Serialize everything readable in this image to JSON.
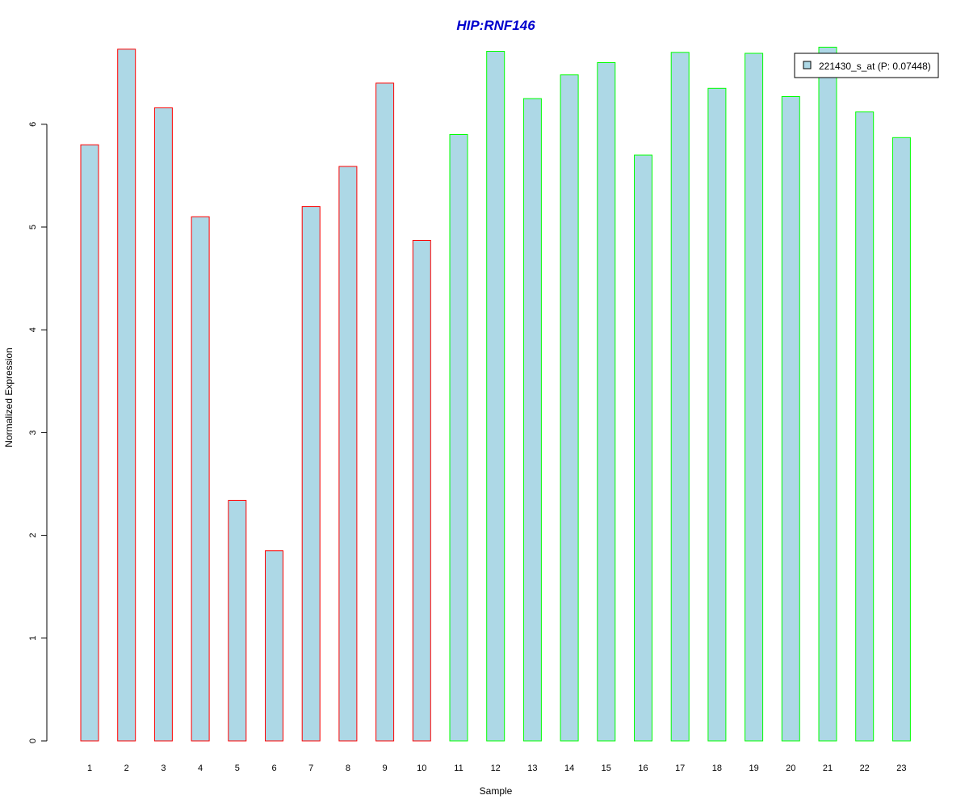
{
  "chart_data": {
    "type": "bar",
    "title": "HIP:RNF146",
    "xlabel": "Sample",
    "ylabel": "Normalized Expression",
    "categories": [
      "1",
      "2",
      "3",
      "4",
      "5",
      "6",
      "7",
      "8",
      "9",
      "10",
      "11",
      "12",
      "13",
      "14",
      "15",
      "16",
      "17",
      "18",
      "19",
      "20",
      "21",
      "22",
      "23"
    ],
    "series": [
      {
        "name": "221430_s_at (P: 0.07448)",
        "values": [
          5.8,
          6.73,
          6.16,
          5.1,
          2.34,
          1.85,
          5.2,
          5.59,
          6.4,
          4.87,
          5.9,
          6.71,
          6.25,
          6.48,
          6.6,
          5.7,
          6.7,
          6.35,
          6.69,
          6.27,
          6.75,
          6.12,
          5.87
        ],
        "fill_color": "#add8e6"
      }
    ],
    "group_border_colors": [
      "#ff0000",
      "#ff0000",
      "#ff0000",
      "#ff0000",
      "#ff0000",
      "#ff0000",
      "#ff0000",
      "#ff0000",
      "#ff0000",
      "#ff0000",
      "#00ff00",
      "#00ff00",
      "#00ff00",
      "#00ff00",
      "#00ff00",
      "#00ff00",
      "#00ff00",
      "#00ff00",
      "#00ff00",
      "#00ff00",
      "#00ff00",
      "#00ff00",
      "#00ff00"
    ],
    "title_color": "#0000cd",
    "yticks": [
      0,
      1,
      2,
      3,
      4,
      5,
      6
    ],
    "ylim": [
      0,
      6.75
    ],
    "grid": false,
    "legend_position": "top-right"
  }
}
